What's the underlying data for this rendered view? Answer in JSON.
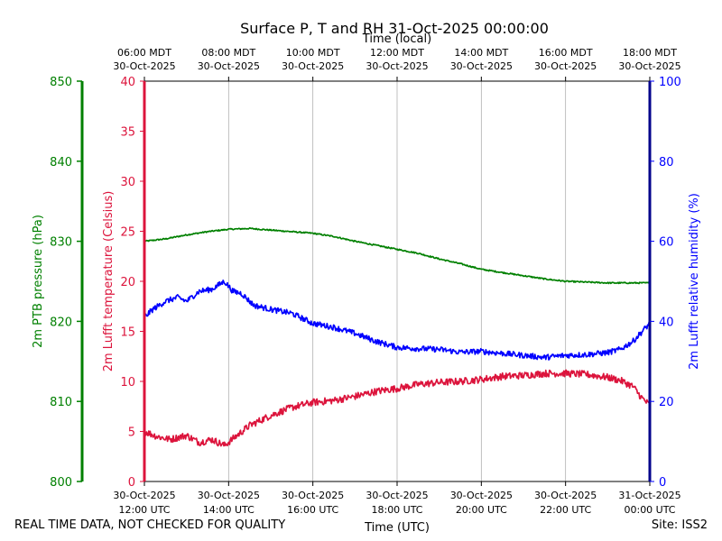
{
  "chart_data": {
    "type": "line",
    "title": "Surface P, T and RH 31-Oct-2025 00:00:00",
    "top_axis_label": "Time (local)",
    "xlabel": "Time (UTC)",
    "x_range_hours_utc": [
      12,
      24
    ],
    "x_ticks_utc": [
      {
        "h": 12,
        "line1": "30-Oct-2025",
        "line2": "12:00 UTC"
      },
      {
        "h": 14,
        "line1": "30-Oct-2025",
        "line2": "14:00 UTC"
      },
      {
        "h": 16,
        "line1": "30-Oct-2025",
        "line2": "16:00 UTC"
      },
      {
        "h": 18,
        "line1": "30-Oct-2025",
        "line2": "18:00 UTC"
      },
      {
        "h": 20,
        "line1": "30-Oct-2025",
        "line2": "20:00 UTC"
      },
      {
        "h": 22,
        "line1": "30-Oct-2025",
        "line2": "22:00 UTC"
      },
      {
        "h": 24,
        "line1": "31-Oct-2025",
        "line2": "00:00 UTC"
      }
    ],
    "x_ticks_local": [
      {
        "h": 12,
        "line1": "06:00 MDT",
        "line2": "30-Oct-2025"
      },
      {
        "h": 14,
        "line1": "08:00 MDT",
        "line2": "30-Oct-2025"
      },
      {
        "h": 16,
        "line1": "10:00 MDT",
        "line2": "30-Oct-2025"
      },
      {
        "h": 18,
        "line1": "12:00 MDT",
        "line2": "30-Oct-2025"
      },
      {
        "h": 20,
        "line1": "14:00 MDT",
        "line2": "30-Oct-2025"
      },
      {
        "h": 22,
        "line1": "16:00 MDT",
        "line2": "30-Oct-2025"
      },
      {
        "h": 24,
        "line1": "18:00 MDT",
        "line2": "30-Oct-2025"
      }
    ],
    "grid": "vertical",
    "axes": {
      "temperature": {
        "label": "2m Lufft temperature (Celsius)",
        "color": "#dc143c",
        "ylim": [
          0,
          40
        ],
        "ticks": [
          0,
          5,
          10,
          15,
          20,
          25,
          30,
          35,
          40
        ]
      },
      "pressure": {
        "label": "2m PTB pressure (hPa)",
        "color": "#008000",
        "ylim": [
          800,
          850
        ],
        "ticks": [
          800,
          810,
          820,
          830,
          840,
          850
        ]
      },
      "humidity": {
        "label": "2m Lufft relative humidity (%)",
        "color": "#0000ff",
        "ylim": [
          0,
          100
        ],
        "ticks": [
          0,
          20,
          40,
          60,
          80,
          100
        ]
      }
    },
    "series": [
      {
        "name": "2m PTB pressure",
        "axis": "pressure",
        "color": "#008000",
        "noise": 0.08,
        "x": [
          12.0,
          12.5,
          13.0,
          13.5,
          14.0,
          14.5,
          15.0,
          15.5,
          16.0,
          16.5,
          17.0,
          17.5,
          18.0,
          18.5,
          19.0,
          19.5,
          20.0,
          20.5,
          21.0,
          21.5,
          22.0,
          22.5,
          23.0,
          23.5,
          24.0
        ],
        "y": [
          830.0,
          830.3,
          830.8,
          831.2,
          831.5,
          831.6,
          831.4,
          831.2,
          831.0,
          830.6,
          830.0,
          829.5,
          829.0,
          828.5,
          827.8,
          827.2,
          826.5,
          826.1,
          825.7,
          825.3,
          825.0,
          824.9,
          824.8,
          824.8,
          824.8
        ]
      },
      {
        "name": "2m Lufft temperature",
        "axis": "temperature",
        "color": "#dc143c",
        "noise": 0.35,
        "x": [
          12.0,
          12.3,
          12.6,
          13.0,
          13.3,
          13.6,
          13.9,
          14.2,
          14.5,
          15.0,
          15.5,
          16.0,
          16.5,
          17.0,
          17.5,
          18.0,
          18.5,
          19.0,
          19.5,
          20.0,
          20.5,
          21.0,
          21.5,
          22.0,
          22.5,
          23.0,
          23.3,
          23.6,
          23.8,
          24.0
        ],
        "y": [
          5.0,
          4.5,
          4.2,
          4.6,
          3.9,
          4.2,
          3.6,
          4.6,
          5.6,
          6.6,
          7.4,
          7.9,
          8.1,
          8.5,
          9.0,
          9.3,
          9.7,
          9.9,
          10.0,
          10.2,
          10.5,
          10.6,
          10.8,
          10.8,
          10.7,
          10.4,
          10.1,
          9.5,
          8.4,
          7.6
        ]
      },
      {
        "name": "2m Lufft relative humidity",
        "axis": "humidity",
        "color": "#0000ff",
        "noise": 0.7,
        "x": [
          12.0,
          12.2,
          12.5,
          12.8,
          13.0,
          13.3,
          13.6,
          13.9,
          14.1,
          14.3,
          14.6,
          15.0,
          15.5,
          16.0,
          16.5,
          17.0,
          17.5,
          18.0,
          18.5,
          19.0,
          19.5,
          20.0,
          20.5,
          21.0,
          21.5,
          22.0,
          22.5,
          23.0,
          23.3,
          23.6,
          24.0
        ],
        "y": [
          41.0,
          43.0,
          45.0,
          46.0,
          45.0,
          47.5,
          48.0,
          50.0,
          47.5,
          47.0,
          44.0,
          43.0,
          42.0,
          39.5,
          38.5,
          37.0,
          35.0,
          33.5,
          33.2,
          33.0,
          32.3,
          32.5,
          32.0,
          31.5,
          31.0,
          31.5,
          31.7,
          32.2,
          33.0,
          35.0,
          39.5
        ]
      }
    ]
  },
  "footer": {
    "left_note": "REAL TIME DATA, NOT CHECKED FOR QUALITY",
    "site": "Site: ISS2"
  }
}
